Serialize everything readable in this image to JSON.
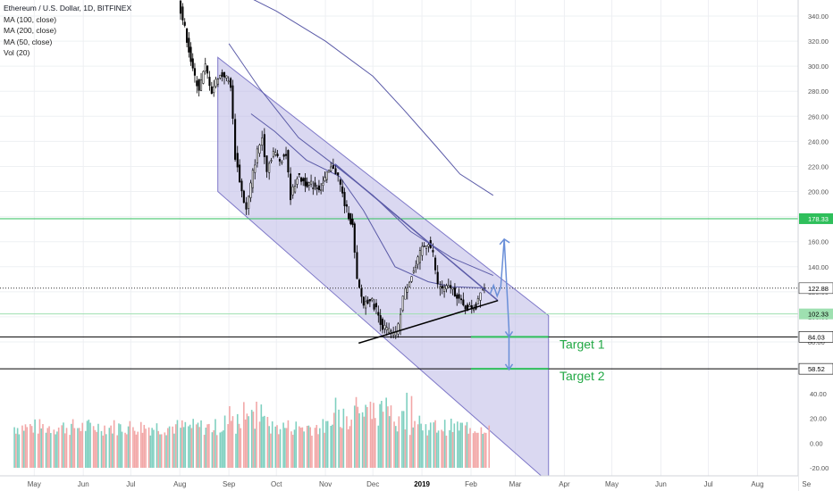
{
  "header": {
    "title": "Ethereum / U.S. Dollar, 1D, BITFINEX",
    "indicators": [
      "MA (100, close)",
      "MA (200, close)",
      "MA (50, close)",
      "Vol (20)"
    ]
  },
  "colors": {
    "grid": "#eef0f3",
    "candle_up": "#ffffff",
    "candle_down": "#000000",
    "channel_fill": "#bcb8e6",
    "channel_line": "#7e78c8",
    "ma_line": "#5b5ba8",
    "support_green": "#2fbf5b",
    "target_text": "#22a845",
    "arrow": "#6a8fd8",
    "volume_up": "#7fd0c0",
    "volume_down": "#f2a7a7"
  },
  "chart_data": {
    "type": "candlestick",
    "symbol": "ETHUSD",
    "x_ticks": [
      "May",
      "Jun",
      "Jul",
      "Aug",
      "Sep",
      "Oct",
      "Nov",
      "Dec",
      "2019",
      "Feb",
      "Mar",
      "Apr",
      "May",
      "Jun",
      "Jul",
      "Aug",
      "Se"
    ],
    "price_axis_ticks": [
      340,
      320,
      300,
      280,
      260,
      240,
      220,
      200,
      180,
      160,
      140,
      120,
      100,
      80
    ],
    "price_range": [
      67,
      356
    ],
    "volume_axis_ticks": [
      60,
      40,
      20,
      0,
      -20
    ],
    "volume_range": [
      -23,
      90
    ],
    "price_labels": [
      {
        "text": "178.33",
        "value": 178.33,
        "style": "green"
      },
      {
        "text": "122.88",
        "value": 122.88,
        "style": "current"
      },
      {
        "text": "102.33",
        "value": 102.33,
        "style": "green-light"
      },
      {
        "text": "84.03",
        "value": 84.03,
        "style": "black"
      },
      {
        "text": "58.52",
        "value": 58.52,
        "style": "black"
      }
    ],
    "annotations": [
      {
        "text": "Target 1",
        "price": 84.03
      },
      {
        "text": "Target 2",
        "price": 58.52
      }
    ],
    "price_points": [
      [
        "2018-08-01",
        352
      ],
      [
        "2018-08-05",
        330
      ],
      [
        "2018-08-10",
        296
      ],
      [
        "2018-08-14",
        282
      ],
      [
        "2018-08-18",
        300
      ],
      [
        "2018-08-22",
        280
      ],
      [
        "2018-08-26",
        292
      ],
      [
        "2018-08-30",
        293
      ],
      [
        "2018-09-03",
        285
      ],
      [
        "2018-09-06",
        228
      ],
      [
        "2018-09-10",
        200
      ],
      [
        "2018-09-13",
        185
      ],
      [
        "2018-09-17",
        215
      ],
      [
        "2018-09-20",
        232
      ],
      [
        "2018-09-23",
        243
      ],
      [
        "2018-09-26",
        218
      ],
      [
        "2018-09-30",
        232
      ],
      [
        "2018-10-04",
        225
      ],
      [
        "2018-10-08",
        230
      ],
      [
        "2018-10-11",
        196
      ],
      [
        "2018-10-15",
        212
      ],
      [
        "2018-10-20",
        207
      ],
      [
        "2018-10-25",
        205
      ],
      [
        "2018-10-30",
        203
      ],
      [
        "2018-11-04",
        216
      ],
      [
        "2018-11-07",
        220
      ],
      [
        "2018-11-10",
        212
      ],
      [
        "2018-11-14",
        190
      ],
      [
        "2018-11-19",
        172
      ],
      [
        "2018-11-22",
        128
      ],
      [
        "2018-11-26",
        110
      ],
      [
        "2018-11-30",
        115
      ],
      [
        "2018-12-04",
        106
      ],
      [
        "2018-12-08",
        92
      ],
      [
        "2018-12-12",
        89
      ],
      [
        "2018-12-15",
        85
      ],
      [
        "2018-12-18",
        92
      ],
      [
        "2018-12-21",
        116
      ],
      [
        "2018-12-25",
        130
      ],
      [
        "2018-12-29",
        140
      ],
      [
        "2019-01-02",
        155
      ],
      [
        "2019-01-06",
        160
      ],
      [
        "2019-01-09",
        150
      ],
      [
        "2019-01-12",
        125
      ],
      [
        "2019-01-16",
        122
      ],
      [
        "2019-01-20",
        124
      ],
      [
        "2019-01-24",
        117
      ],
      [
        "2019-01-28",
        108
      ],
      [
        "2019-02-01",
        107
      ],
      [
        "2019-02-05",
        108
      ],
      [
        "2019-02-08",
        122
      ],
      [
        "2019-02-10",
        124
      ]
    ],
    "moving_averages": [
      {
        "name": "MA (50, close)",
        "points": [
          [
            "2018-09-15",
            262
          ],
          [
            "2018-09-30",
            248
          ],
          [
            "2018-10-20",
            225
          ],
          [
            "2018-11-10",
            212
          ],
          [
            "2018-11-25",
            185
          ],
          [
            "2018-12-15",
            140
          ],
          [
            "2019-01-05",
            128
          ],
          [
            "2019-01-20",
            124
          ],
          [
            "2019-02-10",
            123
          ]
        ]
      },
      {
        "name": "MA (100, close)",
        "points": [
          [
            "2018-09-01",
            318
          ],
          [
            "2018-09-20",
            283
          ],
          [
            "2018-10-15",
            243
          ],
          [
            "2018-11-10",
            218
          ],
          [
            "2018-12-01",
            197
          ],
          [
            "2018-12-25",
            168
          ],
          [
            "2019-01-20",
            147
          ],
          [
            "2019-02-15",
            133
          ]
        ]
      },
      {
        "name": "MA (200, close)",
        "points": [
          [
            "2018-09-01",
            363
          ],
          [
            "2018-10-01",
            344
          ],
          [
            "2018-11-01",
            320
          ],
          [
            "2018-12-01",
            292
          ],
          [
            "2018-12-20",
            266
          ],
          [
            "2019-01-10",
            236
          ],
          [
            "2019-01-25",
            214
          ],
          [
            "2019-02-15",
            197
          ]
        ]
      }
    ],
    "channel": {
      "upper": [
        [
          "2018-08-25",
          307
        ],
        [
          "2019-03-22",
          101
        ]
      ],
      "lower": [
        [
          "2018-08-25",
          200
        ],
        [
          "2019-03-22",
          -32
        ]
      ]
    },
    "trendlines": [
      {
        "name": "resistance",
        "from": [
          "2018-11-07",
          222
        ],
        "to": [
          "2019-02-18",
          113
        ]
      },
      {
        "name": "support",
        "from": [
          "2018-11-22",
          79
        ],
        "to": [
          "2019-02-18",
          113
        ]
      }
    ],
    "targets": [
      {
        "price": 84.03,
        "from": "2019-02-01",
        "to": "2019-03-22"
      },
      {
        "price": 58.52,
        "from": "2019-02-01",
        "to": "2019-03-22"
      }
    ]
  }
}
